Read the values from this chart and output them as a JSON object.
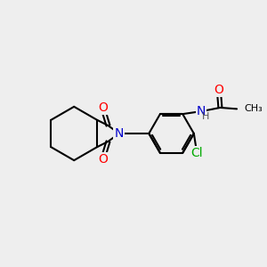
{
  "bg_color": "#eeeeee",
  "bond_color": "#000000",
  "bond_width": 1.5,
  "atom_colors": {
    "O": "#ff0000",
    "N": "#0000cc",
    "Cl": "#00aa00",
    "C": "#000000",
    "H": "#555555"
  },
  "font_size": 9,
  "fig_size": [
    3.0,
    3.0
  ]
}
